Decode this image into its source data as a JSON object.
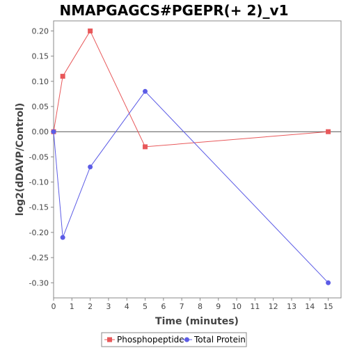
{
  "chart_data": {
    "type": "line",
    "title": "NMAPGAGCS#PGEPR(+ 2)_v1",
    "xlabel": "Time (minutes)",
    "ylabel": "log2(dDAVP/Control)",
    "xlim": [
      0,
      15.7
    ],
    "ylim": [
      -0.33,
      0.22
    ],
    "xticks": [
      0,
      1,
      2,
      3,
      4,
      5,
      6,
      7,
      8,
      9,
      10,
      11,
      12,
      13,
      14,
      15
    ],
    "yticks": [
      0.2,
      0.15,
      0.1,
      0.05,
      0.0,
      -0.05,
      -0.1,
      -0.15,
      -0.2,
      -0.25,
      -0.3
    ],
    "ytick_labels": [
      "0.20",
      "0.15",
      "0.10",
      "0.05",
      "0.00",
      "-0.05",
      "-0.10",
      "-0.15",
      "-0.20",
      "-0.25",
      "-0.30"
    ],
    "zero_line": true,
    "grid": false,
    "legend_position": "bottom",
    "series": [
      {
        "name": "Phosphopeptide",
        "color": "#e8585a",
        "marker": "square",
        "x": [
          0,
          0.5,
          2,
          5,
          15
        ],
        "y": [
          0.0,
          0.11,
          0.2,
          -0.03,
          0.0
        ]
      },
      {
        "name": "Total Protein",
        "color": "#5c5ce6",
        "marker": "circle",
        "x": [
          0,
          0.5,
          2,
          5,
          15
        ],
        "y": [
          0.0,
          -0.21,
          -0.07,
          0.08,
          -0.3
        ]
      }
    ]
  }
}
